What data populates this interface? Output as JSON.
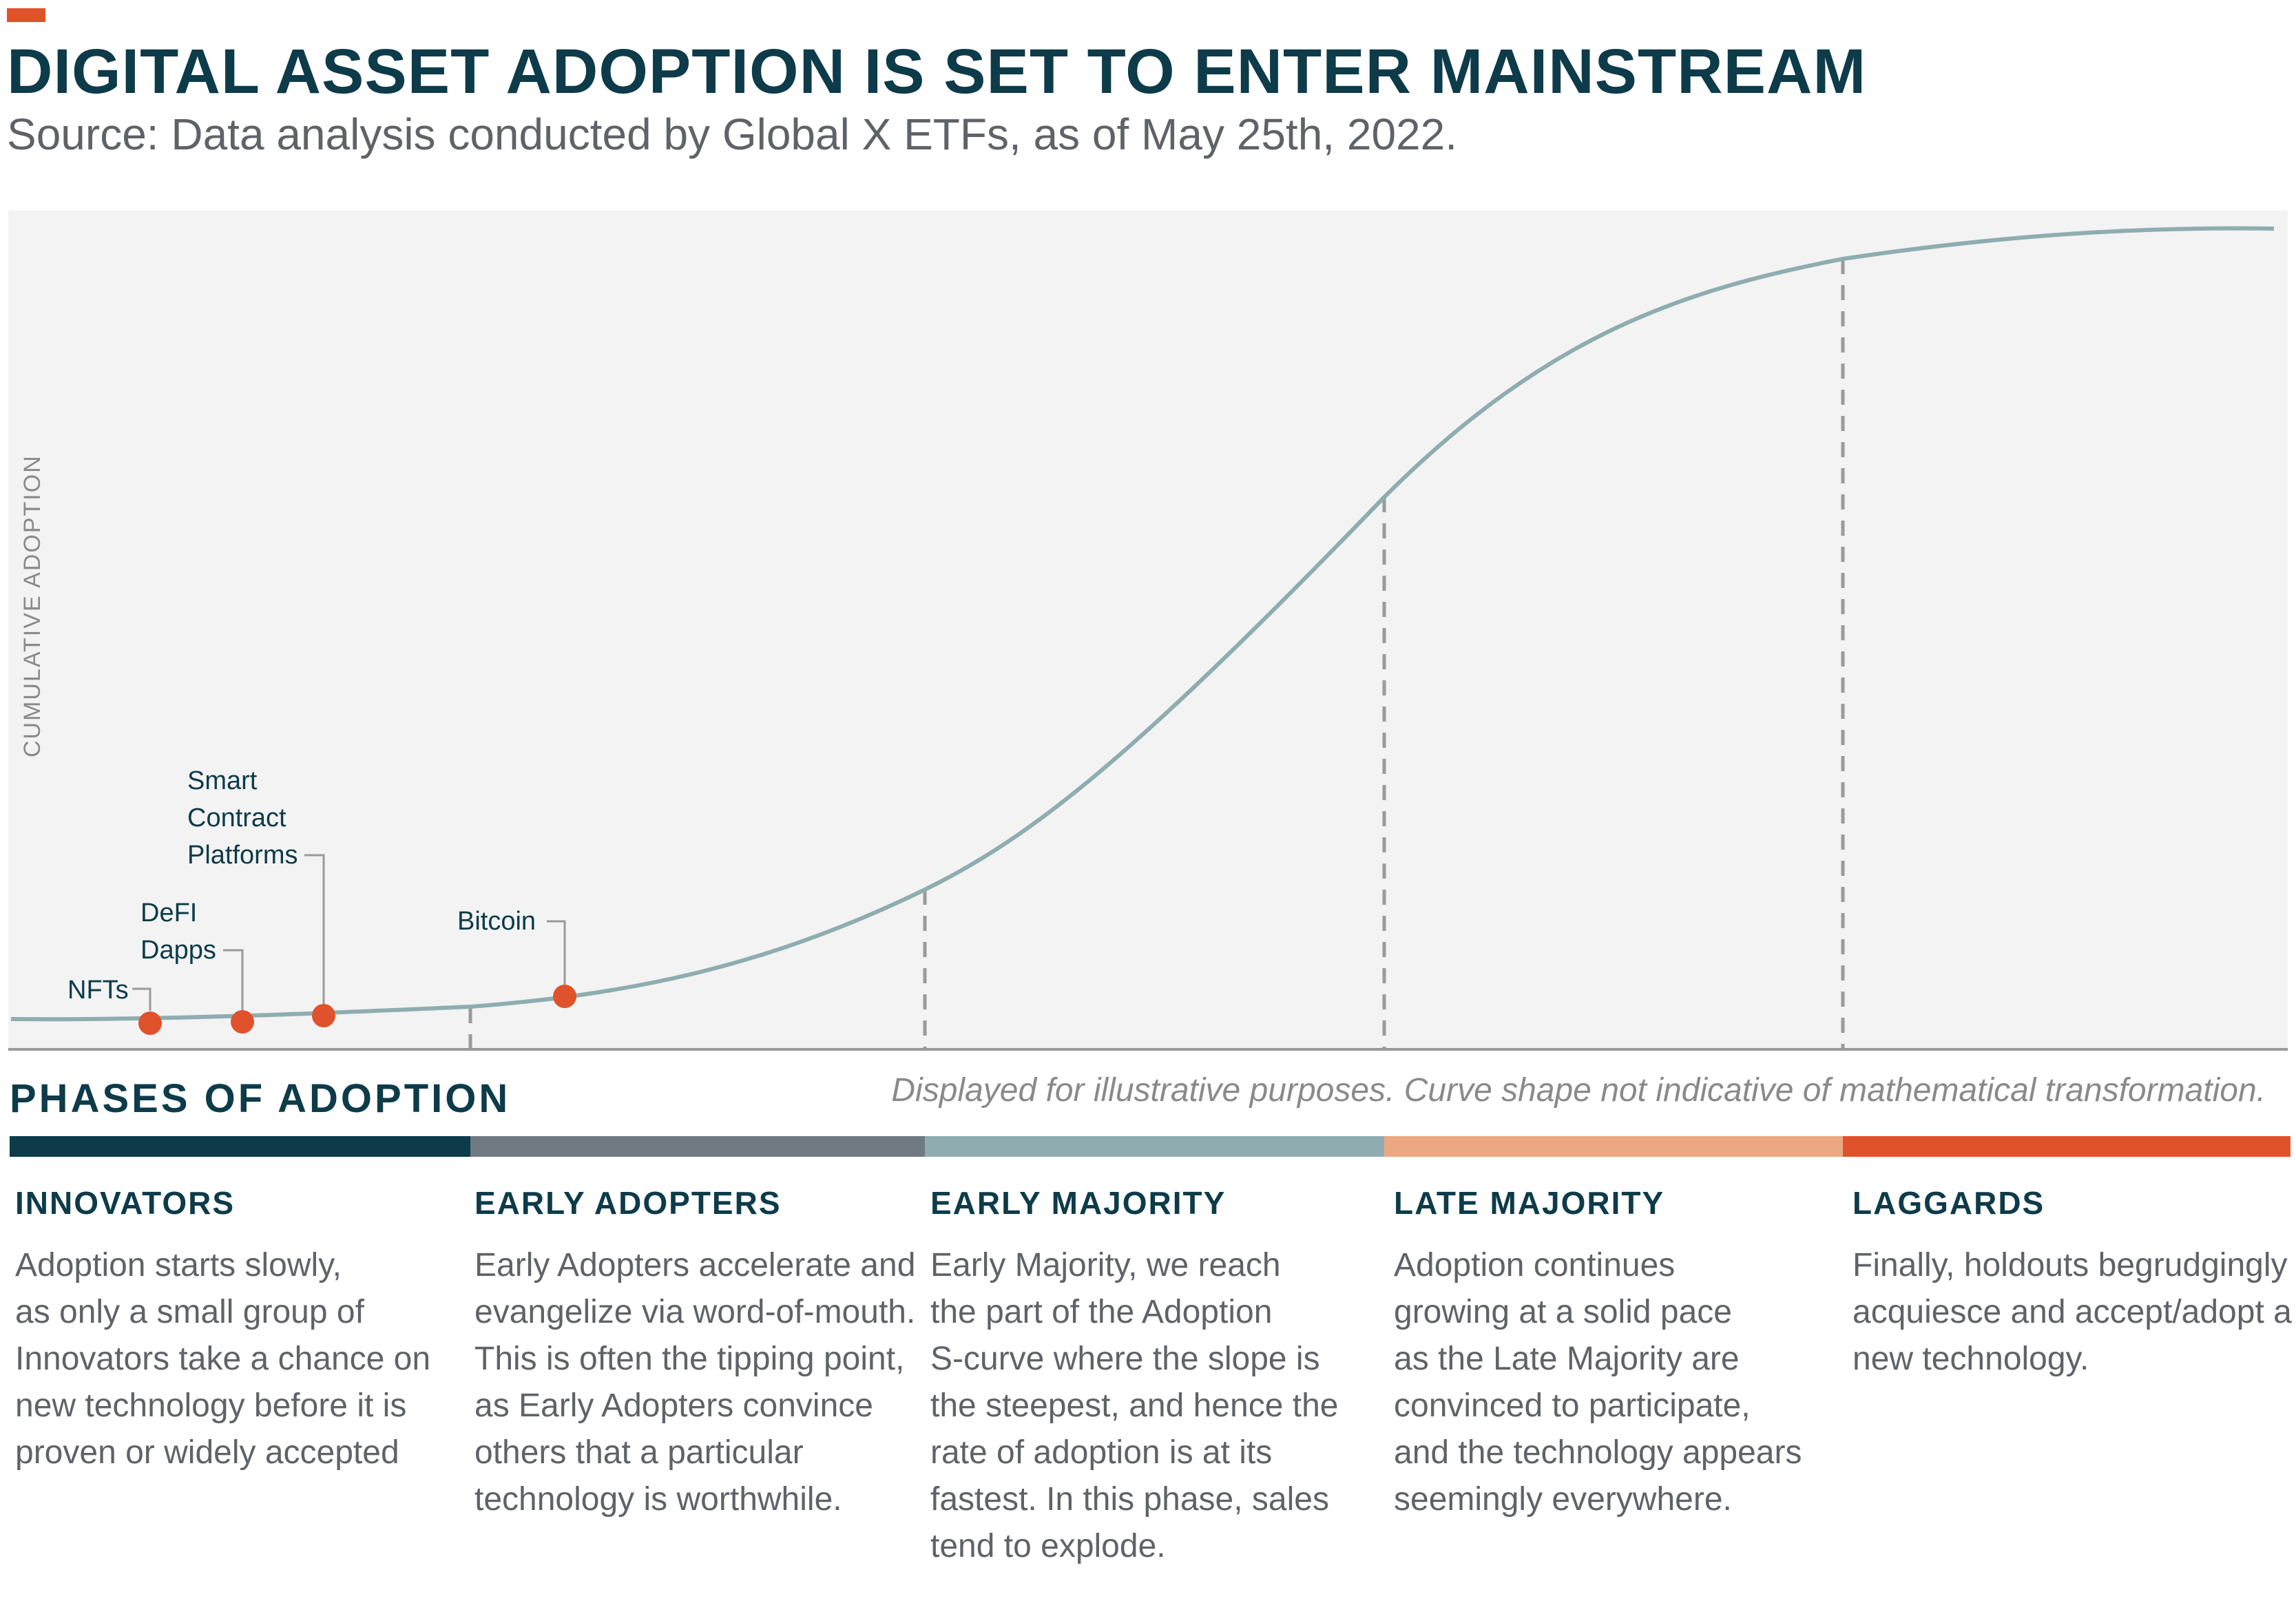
{
  "header": {
    "title": "DIGITAL ASSET ADOPTION IS SET TO ENTER MAINSTREAM",
    "subtitle": "Source: Data analysis conducted by Global X ETFs, as of May 25th, 2022."
  },
  "chart": {
    "ylabel": "CUMULATIVE ADOPTION",
    "curve_color": "#8fadb0",
    "marker_color": "#e0522b",
    "assets": [
      {
        "label": "NFTs"
      },
      {
        "label": "DeFI\nDapps"
      },
      {
        "label": "Smart\nContract\nPlatforms"
      },
      {
        "label": "Bitcoin"
      }
    ]
  },
  "phases_heading": "PHASES OF ADOPTION",
  "disclaimer": "Displayed for illustrative purposes. Curve shape not indicative of mathematical transformation.",
  "phases": [
    {
      "name": "INNOVATORS",
      "color": "#0d3b49",
      "description": "Adoption starts slowly,\nas only a small group of\nInnovators take a chance on\nnew technology before it is\nproven or widely accepted"
    },
    {
      "name": "EARLY ADOPTERS",
      "color": "#707a82",
      "description": "Early Adopters accelerate and\nevangelize via word-of-mouth.\nThis is often the tipping point,\nas Early Adopters convince\nothers that a particular\ntechnology is worthwhile."
    },
    {
      "name": "EARLY MAJORITY",
      "color": "#8fadb0",
      "description": "Early Majority, we reach\nthe part of the Adoption\nS-curve where the slope is\nthe steepest, and hence the\nrate of adoption is at its\nfastest. In this phase, sales\ntend to explode."
    },
    {
      "name": "LATE MAJORITY",
      "color": "#eba882",
      "description": "Adoption continues\ngrowing at a solid pace\nas the Late Majority are\nconvinced to participate,\nand the technology appears\nseemingly everywhere."
    },
    {
      "name": "LAGGARDS",
      "color": "#e0522b",
      "description": "Finally, holdouts begrudgingly\nacquiesce and accept/adopt a\nnew technology."
    }
  ]
}
